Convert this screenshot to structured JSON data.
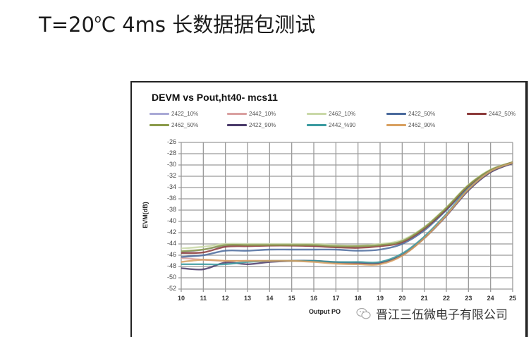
{
  "slide": {
    "title_prefix": "T=20",
    "title_sup": "o",
    "title_suffix": "C 4ms 长数据据包测试"
  },
  "watermark": {
    "text": "晋江三伍微电子有限公司",
    "icon": "wechat-icon"
  },
  "chart_data": {
    "type": "line",
    "title": "DEVM vs Pout,ht40- mcs11",
    "xlabel": "Output  POut(dBm)",
    "xlabel_visible": "Output  PO",
    "ylabel": "EVM(dB)",
    "x": [
      10,
      11,
      12,
      13,
      14,
      15,
      16,
      17,
      18,
      19,
      20,
      21,
      22,
      23,
      24,
      25
    ],
    "xlim": [
      10,
      25
    ],
    "ylim": [
      26,
      52
    ],
    "y_inverted": true,
    "yticks": [
      "-26",
      "-28",
      "-30",
      "-32",
      "-34",
      "-36",
      "-38",
      "-40",
      "-42",
      "-44",
      "-46",
      "-48",
      "-50",
      "-52"
    ],
    "xticks": [
      "10",
      "11",
      "12",
      "13",
      "14",
      "15",
      "16",
      "17",
      "18",
      "19",
      "20",
      "21",
      "22",
      "23",
      "24",
      "25"
    ],
    "grid": true,
    "legend_position": "top",
    "series": [
      {
        "name": "2422_10%",
        "color": "#a9a9d6",
        "values": [
          -45.5,
          -45.0,
          -44.3,
          -44.2,
          -44.2,
          -44.2,
          -44.3,
          -44.5,
          -44.5,
          -44.2,
          -43.6,
          -41.2,
          -37.8,
          -33.8,
          -31.0,
          -29.6
        ]
      },
      {
        "name": "2442_10%",
        "color": "#d9a0a0",
        "values": [
          -46.5,
          -46.8,
          -47.0,
          -47.0,
          -47.0,
          -47.0,
          -47.0,
          -47.2,
          -47.3,
          -47.3,
          -45.8,
          -42.8,
          -38.8,
          -34.3,
          -31.2,
          -29.6
        ]
      },
      {
        "name": "2462_10%",
        "color": "#c9d8a8",
        "values": [
          -44.8,
          -44.5,
          -44.0,
          -44.0,
          -44.0,
          -44.0,
          -44.0,
          -44.2,
          -44.3,
          -44.0,
          -43.3,
          -41.0,
          -37.5,
          -33.5,
          -30.8,
          -29.5
        ]
      },
      {
        "name": "2422_50%",
        "color": "#4a6a9c",
        "values": [
          -46.3,
          -46.0,
          -45.2,
          -45.2,
          -45.0,
          -45.0,
          -45.0,
          -45.0,
          -45.2,
          -45.0,
          -44.0,
          -41.6,
          -38.0,
          -34.0,
          -31.0,
          -29.6
        ]
      },
      {
        "name": "2442_50%",
        "color": "#8b3a3a",
        "values": [
          -45.6,
          -45.5,
          -44.5,
          -44.4,
          -44.3,
          -44.3,
          -44.4,
          -44.6,
          -44.7,
          -44.4,
          -43.7,
          -41.3,
          -37.8,
          -33.7,
          -31.0,
          -29.5
        ]
      },
      {
        "name": "2462_50%",
        "color": "#8a9a4a",
        "values": [
          -45.3,
          -45.0,
          -44.2,
          -44.2,
          -44.2,
          -44.2,
          -44.2,
          -44.4,
          -44.4,
          -44.2,
          -43.5,
          -41.1,
          -37.6,
          -33.6,
          -30.9,
          -29.5
        ]
      },
      {
        "name": "2422_90%",
        "color": "#4a3a6a",
        "values": [
          -48.3,
          -48.5,
          -47.3,
          -47.6,
          -47.2,
          -47.0,
          -47.0,
          -47.3,
          -47.4,
          -47.4,
          -46.0,
          -43.0,
          -39.0,
          -34.5,
          -31.3,
          -29.7
        ]
      },
      {
        "name": "2442_%90",
        "color": "#3a9aa0",
        "values": [
          -47.6,
          -47.6,
          -47.6,
          -47.2,
          -47.0,
          -47.0,
          -47.0,
          -47.2,
          -47.2,
          -47.2,
          -45.7,
          -42.7,
          -38.7,
          -34.2,
          -31.1,
          -29.6
        ]
      },
      {
        "name": "2462_90%",
        "color": "#d8a060",
        "values": [
          -47.2,
          -46.8,
          -47.0,
          -47.0,
          -47.0,
          -47.0,
          -47.2,
          -47.5,
          -47.6,
          -47.6,
          -46.1,
          -43.0,
          -38.9,
          -34.3,
          -31.1,
          -29.6
        ]
      }
    ]
  }
}
